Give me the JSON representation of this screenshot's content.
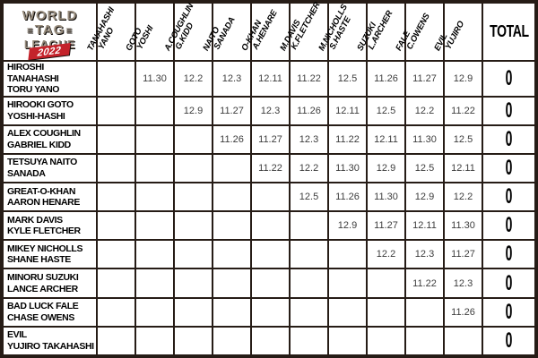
{
  "chart_data": {
    "type": "table",
    "title": "WORLD TAG LEAGUE 2022",
    "corner_logo": {
      "line1": "WORLD",
      "line2": "TAG",
      "line3": "LEAGUE",
      "year": "2022"
    },
    "column_headers": [
      "TANAHASHI\nYANO",
      "GOTO\nYOSHI",
      "A.COUGHLIN\nG.KIDD",
      "NAITO\nSANADA",
      "O-KHAN\nA.HENARE",
      "M.DAVIS\nK.FLETCHER",
      "M.NICHOLLS\nS.HASTE",
      "SUZUKI\nL.ARCHER",
      "FALE\nC.OWENS",
      "EVIL\nYUJIRO"
    ],
    "total_header": "TOTAL",
    "rows": [
      {
        "team": "HIROSHI TANAHASHI\nTORU YANO",
        "results": [
          "",
          "11.30",
          "12.2",
          "12.3",
          "12.11",
          "11.22",
          "12.5",
          "11.26",
          "11.27",
          "12.9"
        ],
        "total": "0"
      },
      {
        "team": "HIROOKI GOTO\nYOSHI-HASHI",
        "results": [
          "",
          "",
          "12.9",
          "11.27",
          "12.3",
          "11.26",
          "12.11",
          "12.5",
          "12.2",
          "11.22"
        ],
        "total": "0"
      },
      {
        "team": "ALEX COUGHLIN\nGABRIEL KIDD",
        "results": [
          "",
          "",
          "",
          "11.26",
          "11.27",
          "12.3",
          "11.22",
          "12.11",
          "11.30",
          "12.5"
        ],
        "total": "0"
      },
      {
        "team": "TETSUYA NAITO\nSANADA",
        "results": [
          "",
          "",
          "",
          "",
          "11.22",
          "12.2",
          "11.30",
          "12.9",
          "12.5",
          "12.11"
        ],
        "total": "0"
      },
      {
        "team": "GREAT-O-KHAN\nAARON HENARE",
        "results": [
          "",
          "",
          "",
          "",
          "",
          "12.5",
          "11.26",
          "11.30",
          "12.9",
          "12.2"
        ],
        "total": "0"
      },
      {
        "team": "MARK DAVIS\nKYLE FLETCHER",
        "results": [
          "",
          "",
          "",
          "",
          "",
          "",
          "12.9",
          "11.27",
          "12.11",
          "11.30"
        ],
        "total": "0"
      },
      {
        "team": "MIKEY NICHOLLS\nSHANE HASTE",
        "results": [
          "",
          "",
          "",
          "",
          "",
          "",
          "",
          "12.2",
          "12.3",
          "11.27"
        ],
        "total": "0"
      },
      {
        "team": "MINORU SUZUKI\nLANCE ARCHER",
        "results": [
          "",
          "",
          "",
          "",
          "",
          "",
          "",
          "",
          "11.22",
          "12.3"
        ],
        "total": "0"
      },
      {
        "team": "BAD LUCK FALE\nCHASE OWENS",
        "results": [
          "",
          "",
          "",
          "",
          "",
          "",
          "",
          "",
          "",
          "11.26"
        ],
        "total": "0"
      },
      {
        "team": "EVIL\nYUJIRO TAKAHASHI",
        "results": [
          "",
          "",
          "",
          "",
          "",
          "",
          "",
          "",
          "",
          ""
        ],
        "total": "0"
      }
    ]
  },
  "colors": {
    "frame": "#261c16",
    "line": "#33221b",
    "cell_bg": "#ffffff",
    "date_text": "#3d3d3d",
    "logo_red": "#c4232b",
    "logo_text": "#968b7c"
  }
}
